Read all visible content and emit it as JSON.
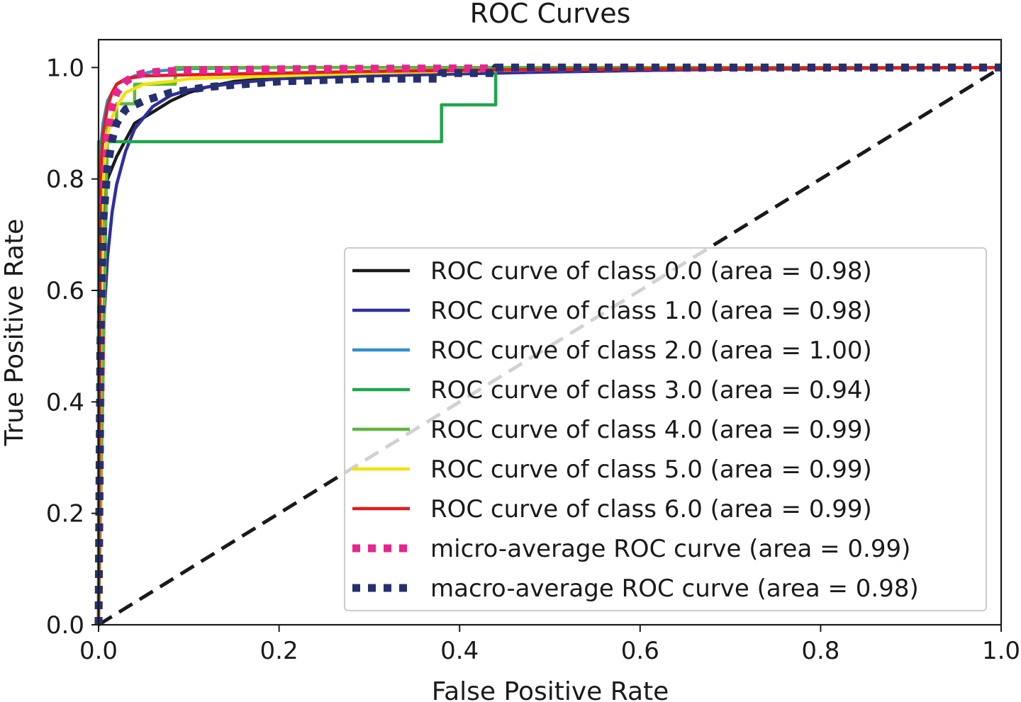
{
  "chart_data": {
    "type": "line",
    "title": "ROC Curves",
    "xlabel": "False Positive Rate",
    "ylabel": "True Positive Rate",
    "xlim": [
      0.0,
      1.0
    ],
    "ylim": [
      0.0,
      1.05
    ],
    "xticks": [
      "0.0",
      "0.2",
      "0.4",
      "0.6",
      "0.8",
      "1.0"
    ],
    "yticks": [
      "0.0",
      "0.2",
      "0.4",
      "0.6",
      "0.8",
      "1.0"
    ],
    "legend_position": "lower-right",
    "series": [
      {
        "name": "ROC curve of class 0.0 (area = 0.98)",
        "color": "#1a1a1a",
        "style": "solid",
        "x": [
          0,
          0.002,
          0.004,
          0.006,
          0.01,
          0.015,
          0.02,
          0.03,
          0.04,
          0.06,
          0.08,
          0.1,
          0.12,
          0.15,
          0.2,
          0.3,
          0.5,
          0.7,
          1.0
        ],
        "y": [
          0,
          0.62,
          0.72,
          0.77,
          0.8,
          0.82,
          0.84,
          0.87,
          0.9,
          0.92,
          0.94,
          0.955,
          0.965,
          0.975,
          0.982,
          0.99,
          0.995,
          0.998,
          1.0
        ]
      },
      {
        "name": "ROC curve of class 1.0 (area = 0.98)",
        "color": "#2e2e9e",
        "style": "solid",
        "x": [
          0,
          0.003,
          0.006,
          0.01,
          0.015,
          0.02,
          0.025,
          0.03,
          0.035,
          0.04,
          0.05,
          0.06,
          0.08,
          0.1,
          0.15,
          0.2,
          0.3,
          0.5,
          0.7,
          1.0
        ],
        "y": [
          0,
          0.4,
          0.55,
          0.66,
          0.74,
          0.79,
          0.82,
          0.85,
          0.87,
          0.89,
          0.91,
          0.93,
          0.95,
          0.96,
          0.972,
          0.98,
          0.985,
          0.992,
          0.997,
          1.0
        ]
      },
      {
        "name": "ROC curve of class 2.0 (area = 1.00)",
        "color": "#2f8fd0",
        "style": "solid",
        "x": [
          0,
          0.002,
          0.005,
          0.01,
          0.02,
          0.04,
          0.06,
          0.1,
          0.2,
          1.0
        ],
        "y": [
          0,
          0.85,
          0.9,
          0.94,
          0.97,
          0.985,
          0.993,
          0.998,
          1.0,
          1.0
        ]
      },
      {
        "name": "ROC curve of class 3.0 (area = 0.94)",
        "color": "#1ea64c",
        "style": "solid",
        "x": [
          0,
          0,
          0.38,
          0.38,
          0.44,
          0.44,
          1.0
        ],
        "y": [
          0,
          0.867,
          0.867,
          0.933,
          0.933,
          1.0,
          1.0
        ]
      },
      {
        "name": "ROC curve of class 4.0 (area = 0.99)",
        "color": "#5cb83c",
        "style": "solid",
        "x": [
          0,
          0.01,
          0.02,
          0.02,
          0.04,
          0.04,
          0.085,
          0.085,
          1.0
        ],
        "y": [
          0,
          0.9,
          0.9,
          0.935,
          0.935,
          0.97,
          0.97,
          1.0,
          1.0
        ]
      },
      {
        "name": "ROC curve of class 5.0 (area = 0.99)",
        "color": "#f2e205",
        "style": "solid",
        "x": [
          0,
          0.003,
          0.006,
          0.01,
          0.015,
          0.02,
          0.03,
          0.05,
          0.08,
          0.1,
          0.2,
          0.3,
          0.5,
          1.0
        ],
        "y": [
          0,
          0.7,
          0.82,
          0.88,
          0.91,
          0.93,
          0.955,
          0.97,
          0.975,
          0.98,
          0.985,
          0.99,
          0.997,
          1.0
        ]
      },
      {
        "name": "ROC curve of class 6.0 (area = 0.99)",
        "color": "#e31a1c",
        "style": "solid",
        "x": [
          0,
          0.002,
          0.005,
          0.01,
          0.015,
          0.02,
          0.03,
          0.05,
          0.1,
          0.2,
          0.3,
          0.5,
          1.0
        ],
        "y": [
          0,
          0.8,
          0.88,
          0.93,
          0.955,
          0.97,
          0.98,
          0.985,
          0.987,
          0.99,
          0.993,
          0.997,
          1.0
        ]
      },
      {
        "name": "micro-average ROC curve (area = 0.99)",
        "color": "#e8258f",
        "style": "dotted",
        "x": [
          0,
          0.001,
          0.003,
          0.006,
          0.01,
          0.015,
          0.02,
          0.03,
          0.04,
          0.05,
          0.07,
          0.1,
          0.2,
          0.3,
          0.5,
          1.0
        ],
        "y": [
          0,
          0.2,
          0.55,
          0.78,
          0.88,
          0.93,
          0.955,
          0.975,
          0.985,
          0.99,
          0.993,
          0.995,
          0.997,
          0.998,
          0.999,
          1.0
        ]
      },
      {
        "name": "macro-average ROC curve (area = 0.98)",
        "color": "#26306e",
        "style": "dotted",
        "x": [
          0,
          0.002,
          0.005,
          0.01,
          0.015,
          0.02,
          0.03,
          0.05,
          0.08,
          0.12,
          0.2,
          0.3,
          0.38,
          0.38,
          0.44,
          0.44,
          1.0
        ],
        "y": [
          0,
          0.5,
          0.72,
          0.82,
          0.87,
          0.9,
          0.925,
          0.94,
          0.955,
          0.965,
          0.975,
          0.98,
          0.98,
          0.99,
          0.99,
          1.0,
          1.0
        ]
      }
    ],
    "reference_lines": [
      {
        "name": "chance-diagonal",
        "color": "#1a1a1a",
        "style": "dashed",
        "x": [
          0,
          1
        ],
        "y": [
          0,
          1
        ]
      }
    ]
  }
}
